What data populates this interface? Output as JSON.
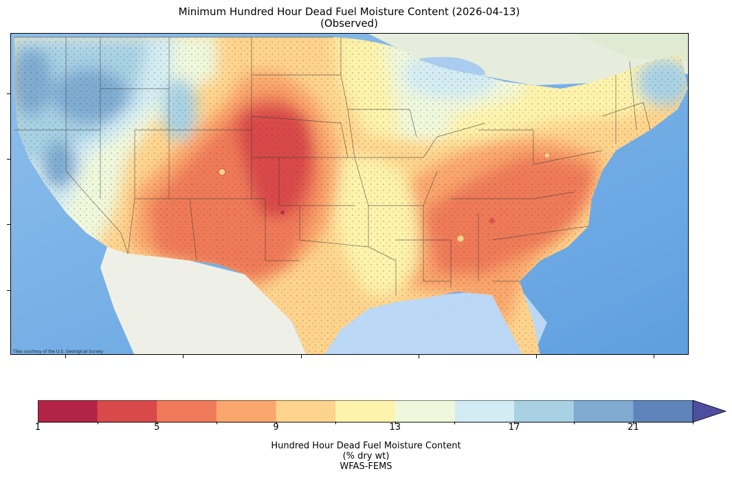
{
  "title": {
    "line1": "Minimum Hundred Hour Dead Fuel Moisture Content (2026-04-13)",
    "line2": "(Observed)"
  },
  "map": {
    "attribution": "Tiles courtesy of the U.S. Geological Survey",
    "basemap_water_color": "#7db2e6",
    "land_outside_color": "#f2f0e8"
  },
  "colorbar": {
    "label_line1": "Hundred Hour Dead Fuel Moisture Content",
    "label_line2": "(% dry wt)",
    "label_line3": "WFAS-FEMS",
    "ticks": [
      "1",
      "5",
      "9",
      "13",
      "17",
      "21"
    ],
    "extend": "max",
    "bins": [
      {
        "min": 1,
        "max": 3,
        "color": "#b32345"
      },
      {
        "min": 3,
        "max": 5,
        "color": "#d9494a"
      },
      {
        "min": 5,
        "max": 7,
        "color": "#ef7a59"
      },
      {
        "min": 7,
        "max": 9,
        "color": "#faa66c"
      },
      {
        "min": 9,
        "max": 11,
        "color": "#fed48d"
      },
      {
        "min": 11,
        "max": 13,
        "color": "#fdf3ab"
      },
      {
        "min": 13,
        "max": 15,
        "color": "#f0f8dc"
      },
      {
        "min": 15,
        "max": 17,
        "color": "#d3ecf3"
      },
      {
        "min": 17,
        "max": 19,
        "color": "#a8d1e4"
      },
      {
        "min": 19,
        "max": 21,
        "color": "#7fabd1"
      },
      {
        "min": 21,
        "max": 23,
        "color": "#5f84bc"
      },
      {
        "min": 23,
        "max": 25,
        "color": "#4e4ea0"
      }
    ]
  }
}
